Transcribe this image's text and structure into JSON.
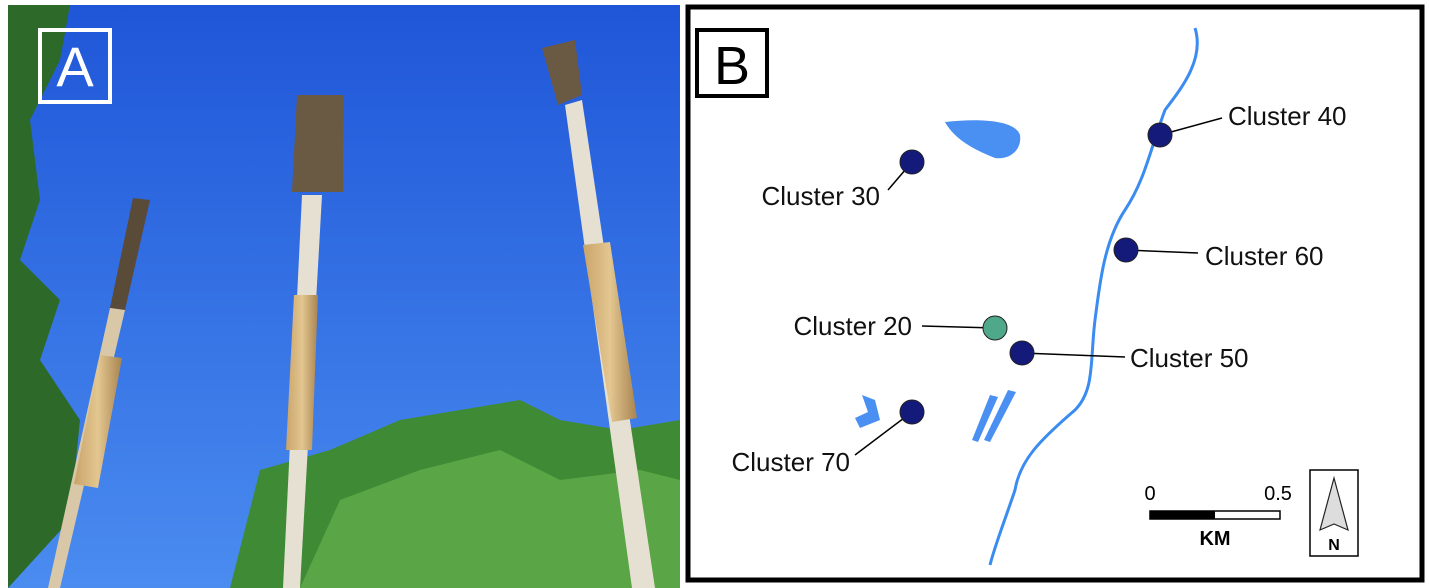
{
  "panels": {
    "a": {
      "label": "A"
    },
    "b": {
      "label": "B",
      "clusters": [
        {
          "label": "Cluster 40"
        },
        {
          "label": "Cluster 30"
        },
        {
          "label": "Cluster 60"
        },
        {
          "label": "Cluster 20"
        },
        {
          "label": "Cluster 50"
        },
        {
          "label": "Cluster 70"
        }
      ],
      "scale_bar": {
        "start": "0",
        "end": "0.5",
        "unit": "KM"
      },
      "north_arrow": "N"
    }
  }
}
